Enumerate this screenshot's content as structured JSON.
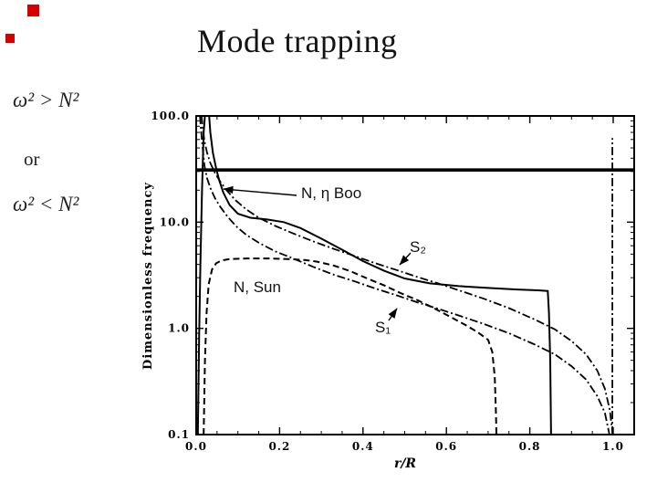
{
  "slide": {
    "title": "Mode trapping",
    "formula_top": "ω² > N²",
    "connector": "or",
    "formula_bottom": "ω² < N²",
    "accent_color": "#d40000"
  },
  "chart_data": {
    "type": "line",
    "title": "",
    "xlabel": "r/R",
    "ylabel": "Dimensionless frequency",
    "x_range": [
      0.0,
      1.05
    ],
    "y_range_log": [
      0.1,
      100.0
    ],
    "y_scale": "log",
    "grid": false,
    "xticks": [
      0.0,
      0.2,
      0.4,
      0.6,
      0.8,
      1.0
    ],
    "xtick_labels": [
      "0.0",
      "0.2",
      "0.4",
      "0.6",
      "0.8",
      "1.0"
    ],
    "ytick_values": [
      100.0,
      10.0,
      1.0,
      0.1
    ],
    "ytick_labels": [
      "100.0",
      "10.0",
      "1.0",
      "0.1"
    ],
    "omega_line_value": 31,
    "annotations": [
      {
        "text": "N, η Boo"
      },
      {
        "text": "S₂"
      },
      {
        "text": "N, Sun"
      },
      {
        "text": "S₁"
      }
    ],
    "series": [
      {
        "id": "n-eta-boo",
        "label": "N, η Boo",
        "style": "solid",
        "points": [
          [
            0.004,
            0.1
          ],
          [
            0.007,
            0.8
          ],
          [
            0.01,
            4
          ],
          [
            0.014,
            20
          ],
          [
            0.018,
            70
          ],
          [
            0.022,
            115
          ],
          [
            0.03,
            115
          ],
          [
            0.034,
            70
          ],
          [
            0.04,
            45
          ],
          [
            0.048,
            32
          ],
          [
            0.055,
            25
          ],
          [
            0.065,
            19
          ],
          [
            0.08,
            14.5
          ],
          [
            0.1,
            12
          ],
          [
            0.13,
            11
          ],
          [
            0.17,
            10.6
          ],
          [
            0.21,
            10
          ],
          [
            0.25,
            8.8
          ],
          [
            0.3,
            7.0
          ],
          [
            0.35,
            5.5
          ],
          [
            0.4,
            4.3
          ],
          [
            0.45,
            3.5
          ],
          [
            0.5,
            2.95
          ],
          [
            0.56,
            2.65
          ],
          [
            0.63,
            2.5
          ],
          [
            0.7,
            2.4
          ],
          [
            0.77,
            2.32
          ],
          [
            0.82,
            2.28
          ],
          [
            0.843,
            2.25
          ],
          [
            0.846,
            1.4
          ],
          [
            0.849,
            0.5
          ],
          [
            0.851,
            0.1
          ]
        ]
      },
      {
        "id": "n-sun",
        "label": "N, Sun",
        "style": "dashed",
        "points": [
          [
            0.018,
            0.1
          ],
          [
            0.021,
            0.5
          ],
          [
            0.025,
            1.4
          ],
          [
            0.03,
            2.6
          ],
          [
            0.038,
            3.6
          ],
          [
            0.048,
            4.1
          ],
          [
            0.06,
            4.35
          ],
          [
            0.08,
            4.5
          ],
          [
            0.12,
            4.55
          ],
          [
            0.17,
            4.55
          ],
          [
            0.22,
            4.5
          ],
          [
            0.26,
            4.4
          ],
          [
            0.29,
            4.25
          ],
          [
            0.33,
            3.9
          ],
          [
            0.37,
            3.45
          ],
          [
            0.41,
            2.95
          ],
          [
            0.45,
            2.55
          ],
          [
            0.49,
            2.15
          ],
          [
            0.53,
            1.85
          ],
          [
            0.57,
            1.55
          ],
          [
            0.61,
            1.28
          ],
          [
            0.645,
            1.08
          ],
          [
            0.675,
            0.92
          ],
          [
            0.7,
            0.78
          ],
          [
            0.71,
            0.6
          ],
          [
            0.716,
            0.35
          ],
          [
            0.719,
            0.15
          ],
          [
            0.72,
            0.1
          ]
        ]
      },
      {
        "id": "s2",
        "label": "S₂",
        "style": "dashdot",
        "points": [
          [
            0.013,
            100
          ],
          [
            0.016,
            75
          ],
          [
            0.02,
            58
          ],
          [
            0.026,
            45
          ],
          [
            0.034,
            36
          ],
          [
            0.045,
            29
          ],
          [
            0.058,
            24
          ],
          [
            0.075,
            19.5
          ],
          [
            0.095,
            16
          ],
          [
            0.12,
            13.2
          ],
          [
            0.15,
            11
          ],
          [
            0.19,
            9.2
          ],
          [
            0.23,
            7.9
          ],
          [
            0.28,
            6.6
          ],
          [
            0.33,
            5.6
          ],
          [
            0.38,
            4.8
          ],
          [
            0.43,
            4.1
          ],
          [
            0.48,
            3.55
          ],
          [
            0.53,
            3.05
          ],
          [
            0.58,
            2.65
          ],
          [
            0.63,
            2.28
          ],
          [
            0.69,
            1.9
          ],
          [
            0.75,
            1.55
          ],
          [
            0.81,
            1.22
          ],
          [
            0.86,
            0.98
          ],
          [
            0.9,
            0.76
          ],
          [
            0.935,
            0.57
          ],
          [
            0.962,
            0.4
          ],
          [
            0.98,
            0.27
          ],
          [
            0.992,
            0.17
          ],
          [
            0.999,
            0.1
          ]
        ]
      },
      {
        "id": "s1",
        "label": "S₁",
        "style": "dashdot",
        "points": [
          [
            0.009,
            100
          ],
          [
            0.012,
            70
          ],
          [
            0.016,
            48
          ],
          [
            0.02,
            34
          ],
          [
            0.026,
            26
          ],
          [
            0.034,
            21
          ],
          [
            0.045,
            16.8
          ],
          [
            0.058,
            13.9
          ],
          [
            0.075,
            11.3
          ],
          [
            0.095,
            9.2
          ],
          [
            0.12,
            7.6
          ],
          [
            0.15,
            6.4
          ],
          [
            0.19,
            5.3
          ],
          [
            0.23,
            4.6
          ],
          [
            0.28,
            3.8
          ],
          [
            0.33,
            3.2
          ],
          [
            0.38,
            2.77
          ],
          [
            0.43,
            2.37
          ],
          [
            0.48,
            2.05
          ],
          [
            0.53,
            1.76
          ],
          [
            0.58,
            1.53
          ],
          [
            0.63,
            1.32
          ],
          [
            0.69,
            1.1
          ],
          [
            0.75,
            0.9
          ],
          [
            0.81,
            0.71
          ],
          [
            0.86,
            0.57
          ],
          [
            0.9,
            0.44
          ],
          [
            0.935,
            0.33
          ],
          [
            0.962,
            0.23
          ],
          [
            0.98,
            0.16
          ],
          [
            0.991,
            0.1
          ]
        ]
      },
      {
        "id": "surface-line",
        "label": "",
        "style": "dashdot",
        "points": [
          [
            0.998,
            0.1
          ],
          [
            0.998,
            62
          ]
        ]
      }
    ]
  }
}
